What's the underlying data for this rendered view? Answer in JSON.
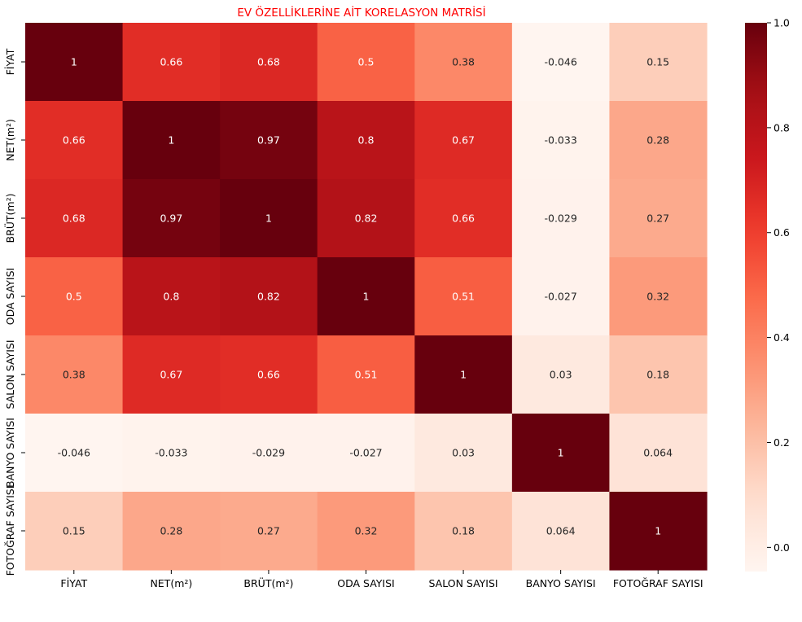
{
  "chart_data": {
    "type": "heatmap",
    "title": "EV ÖZELLİKLERİNE AİT KORELASYON MATRİSİ",
    "title_color": "#ff0000",
    "colormap": "Reds",
    "row_labels": [
      "FİYAT",
      "NET(m²)",
      "BRÜT(m²)",
      "ODA SAYISI",
      "SALON SAYISI",
      "BANYO SAYISI",
      "FOTOĞRAF SAYISI"
    ],
    "col_labels": [
      "FİYAT",
      "NET(m²)",
      "BRÜT(m²)",
      "ODA SAYISI",
      "SALON SAYISI",
      "BANYO SAYISI",
      "FOTOĞRAF SAYISI"
    ],
    "values": [
      [
        1,
        0.66,
        0.68,
        0.5,
        0.38,
        -0.046,
        0.15
      ],
      [
        0.66,
        1,
        0.97,
        0.8,
        0.67,
        -0.033,
        0.28
      ],
      [
        0.68,
        0.97,
        1,
        0.82,
        0.66,
        -0.029,
        0.27
      ],
      [
        0.5,
        0.8,
        0.82,
        1,
        0.51,
        -0.027,
        0.32
      ],
      [
        0.38,
        0.67,
        0.66,
        0.51,
        1,
        0.03,
        0.18
      ],
      [
        -0.046,
        -0.033,
        -0.029,
        -0.027,
        0.03,
        1,
        0.064
      ],
      [
        0.15,
        0.28,
        0.27,
        0.32,
        0.18,
        0.064,
        1
      ]
    ],
    "annotations": [
      [
        "1",
        "0.66",
        "0.68",
        "0.5",
        "0.38",
        "-0.046",
        "0.15"
      ],
      [
        "0.66",
        "1",
        "0.97",
        "0.8",
        "0.67",
        "-0.033",
        "0.28"
      ],
      [
        "0.68",
        "0.97",
        "1",
        "0.82",
        "0.66",
        "-0.029",
        "0.27"
      ],
      [
        "0.5",
        "0.8",
        "0.82",
        "1",
        "0.51",
        "-0.027",
        "0.32"
      ],
      [
        "0.38",
        "0.67",
        "0.66",
        "0.51",
        "1",
        "0.03",
        "0.18"
      ],
      [
        "-0.046",
        "-0.033",
        "-0.029",
        "-0.027",
        "0.03",
        "1",
        "0.064"
      ],
      [
        "0.15",
        "0.28",
        "0.27",
        "0.32",
        "0.18",
        "0.064",
        "1"
      ]
    ],
    "vmin": -0.046,
    "vmax": 1.0,
    "colorbar": {
      "ticks": [
        0.0,
        0.2,
        0.4,
        0.6,
        0.8,
        1.0
      ],
      "tick_labels": [
        "0.0",
        "0.2",
        "0.4",
        "0.6",
        "0.8",
        "1.0"
      ]
    }
  }
}
